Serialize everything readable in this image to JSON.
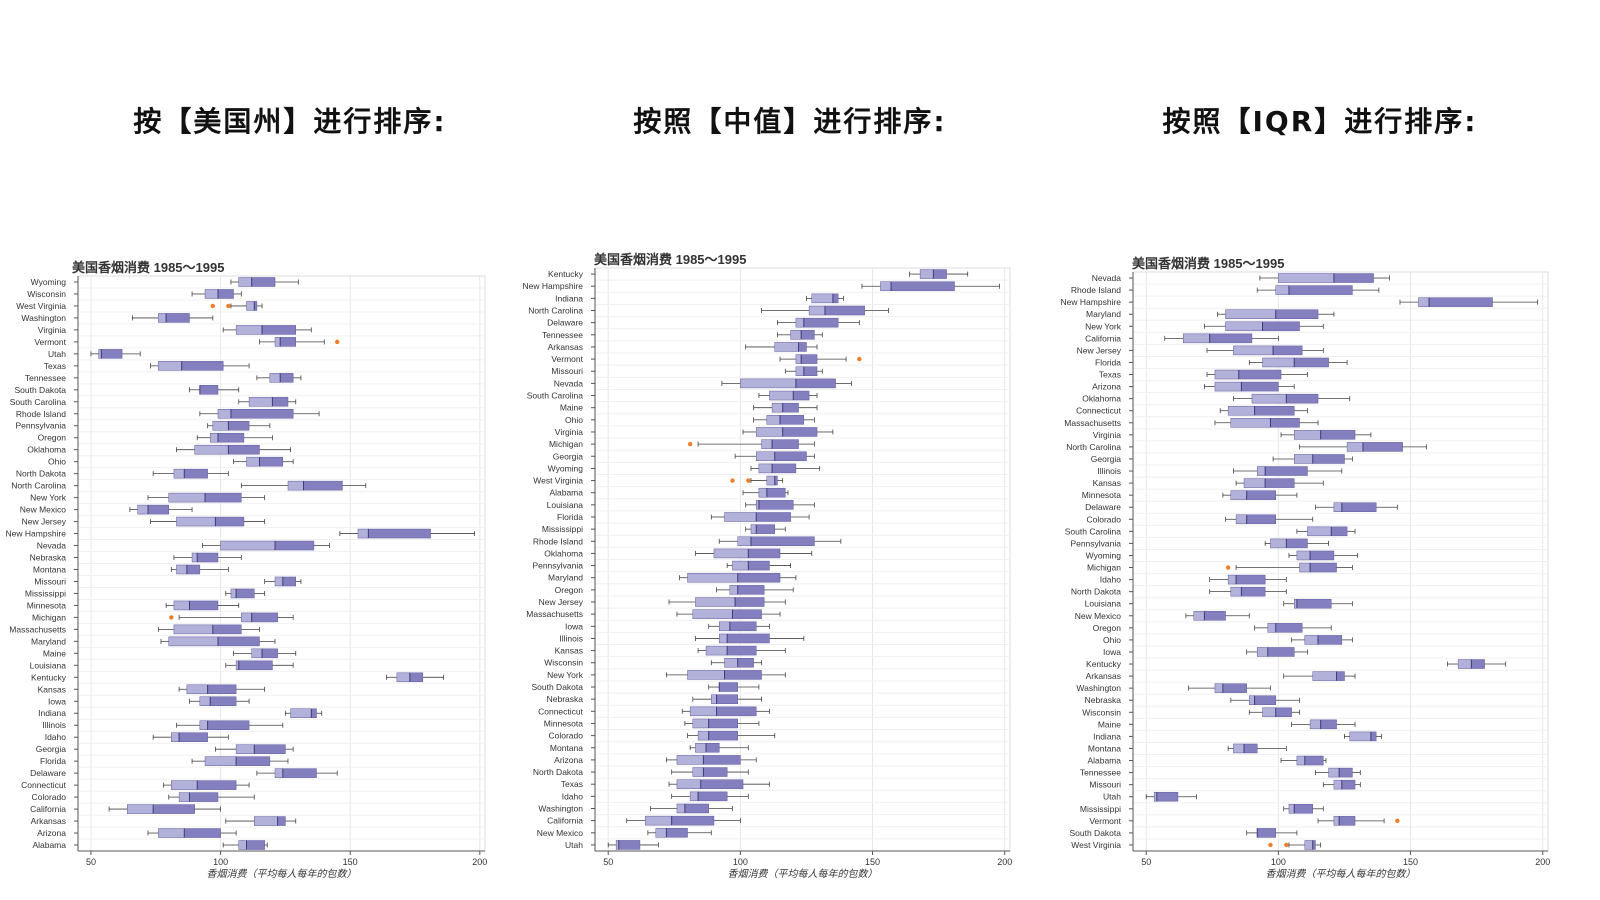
{
  "headings": [
    "按【美国州】进行排序:",
    "按照【中值】进行排序:",
    "按照【IQR】进行排序:"
  ],
  "colors": {
    "box_low": "#b2b1d9",
    "box_high": "#8480c0",
    "box_stroke": "#5c5a9c",
    "outlier": "#f07d2a",
    "grid": "#e6e6e6",
    "axis": "#555555"
  },
  "chart_data": [
    {
      "type": "box",
      "title": "美国香烟消费 1985～1995",
      "xlabel": "香烟消费（平均每人每年的包数）",
      "xlim": [
        45,
        202
      ],
      "xticks": [
        50,
        100,
        150,
        200
      ],
      "categories": [
        "Wyoming",
        "Wisconsin",
        "West Virginia",
        "Washington",
        "Virginia",
        "Vermont",
        "Utah",
        "Texas",
        "Tennessee",
        "South Dakota",
        "South Carolina",
        "Rhode Island",
        "Pennsylvania",
        "Oregon",
        "Oklahoma",
        "Ohio",
        "North Dakota",
        "North Carolina",
        "New York",
        "New Mexico",
        "New Jersey",
        "New Hampshire",
        "Nevada",
        "Nebraska",
        "Montana",
        "Missouri",
        "Mississippi",
        "Minnesota",
        "Michigan",
        "Massachusetts",
        "Maryland",
        "Maine",
        "Louisiana",
        "Kentucky",
        "Kansas",
        "Iowa",
        "Indiana",
        "Illinois",
        "Idaho",
        "Georgia",
        "Florida",
        "Delaware",
        "Connecticut",
        "Colorado",
        "California",
        "Arkansas",
        "Arizona",
        "Alabama"
      ],
      "stats": [
        [
          104,
          107,
          112,
          121,
          130
        ],
        [
          89,
          94,
          99,
          105,
          108
        ],
        [
          104,
          110,
          113,
          114,
          116
        ],
        [
          66,
          76,
          79,
          88,
          97
        ],
        [
          101,
          106,
          116,
          129,
          135
        ],
        [
          115,
          121,
          123,
          129,
          140
        ],
        [
          50,
          53,
          54,
          62,
          69
        ],
        [
          73,
          76,
          85,
          101,
          111
        ],
        [
          114,
          119,
          123,
          128,
          131
        ],
        [
          88,
          92,
          92,
          99,
          107
        ],
        [
          107,
          111,
          120,
          126,
          129
        ],
        [
          92,
          99,
          104,
          128,
          138
        ],
        [
          95,
          97,
          103,
          111,
          119
        ],
        [
          91,
          96,
          99,
          109,
          120
        ],
        [
          83,
          90,
          103,
          115,
          127
        ],
        [
          105,
          110,
          115,
          124,
          128
        ],
        [
          74,
          82,
          86,
          95,
          103
        ],
        [
          108,
          126,
          132,
          147,
          156
        ],
        [
          72,
          80,
          94,
          108,
          117
        ],
        [
          65,
          68,
          72,
          80,
          89
        ],
        [
          73,
          83,
          98,
          109,
          117
        ],
        [
          146,
          153,
          157,
          181,
          198
        ],
        [
          93,
          100,
          121,
          136,
          142
        ],
        [
          82,
          89,
          91,
          99,
          108
        ],
        [
          81,
          83,
          87,
          92,
          103
        ],
        [
          117,
          121,
          124,
          129,
          131
        ],
        [
          102,
          104,
          106,
          113,
          117
        ],
        [
          79,
          82,
          88,
          99,
          107
        ],
        [
          84,
          108,
          112,
          122,
          128
        ],
        [
          76,
          82,
          97,
          108,
          115
        ],
        [
          77,
          80,
          99,
          115,
          121
        ],
        [
          105,
          112,
          116,
          122,
          129
        ],
        [
          102,
          106,
          107,
          120,
          128
        ],
        [
          164,
          168,
          173,
          178,
          186
        ],
        [
          84,
          87,
          95,
          106,
          117
        ],
        [
          88,
          92,
          96,
          106,
          111
        ],
        [
          125,
          127,
          135,
          137,
          139
        ],
        [
          83,
          92,
          95,
          111,
          124
        ],
        [
          74,
          81,
          84,
          95,
          103
        ],
        [
          98,
          106,
          113,
          125,
          128
        ],
        [
          89,
          94,
          106,
          119,
          126
        ],
        [
          114,
          121,
          124,
          137,
          145
        ],
        [
          78,
          81,
          91,
          106,
          111
        ],
        [
          80,
          84,
          88,
          99,
          113
        ],
        [
          57,
          64,
          74,
          90,
          100
        ],
        [
          102,
          113,
          122,
          125,
          129
        ],
        [
          72,
          76,
          86,
          100,
          106
        ],
        [
          101,
          107,
          110,
          117,
          118
        ]
      ],
      "outliers": [
        [],
        [],
        [
          97,
          103
        ],
        [],
        [],
        [
          145
        ],
        [],
        [],
        [],
        [],
        [],
        [],
        [],
        [],
        [],
        [],
        [],
        [],
        [],
        [],
        [],
        [],
        [],
        [],
        [],
        [],
        [],
        [],
        [
          81
        ],
        [],
        [],
        [],
        [],
        [],
        [],
        [],
        [],
        [],
        [],
        [],
        [],
        [],
        [],
        [],
        [],
        [],
        [],
        []
      ]
    },
    {
      "type": "box",
      "title": "美国香烟消费 1985～1995",
      "xlabel": "香烟消费（平均每人每年的包数）",
      "xlim": [
        45,
        202
      ],
      "xticks": [
        50,
        100,
        150,
        200
      ],
      "categories": [
        "Kentucky",
        "New Hampshire",
        "Indiana",
        "North Carolina",
        "Delaware",
        "Tennessee",
        "Arkansas",
        "Vermont",
        "Missouri",
        "Nevada",
        "South Carolina",
        "Maine",
        "Ohio",
        "Virginia",
        "Michigan",
        "Georgia",
        "Wyoming",
        "West Virginia",
        "Alabama",
        "Louisiana",
        "Florida",
        "Mississippi",
        "Rhode Island",
        "Oklahoma",
        "Pennsylvania",
        "Maryland",
        "Oregon",
        "New Jersey",
        "Massachusetts",
        "Iowa",
        "Illinois",
        "Kansas",
        "Wisconsin",
        "New York",
        "South Dakota",
        "Nebraska",
        "Connecticut",
        "Minnesota",
        "Colorado",
        "Montana",
        "Arizona",
        "North Dakota",
        "Texas",
        "Idaho",
        "Washington",
        "California",
        "New Mexico",
        "Utah"
      ],
      "stats": [
        [
          164,
          168,
          173,
          178,
          186
        ],
        [
          146,
          153,
          157,
          181,
          198
        ],
        [
          125,
          127,
          135,
          137,
          139
        ],
        [
          108,
          126,
          132,
          147,
          156
        ],
        [
          114,
          121,
          124,
          137,
          145
        ],
        [
          114,
          119,
          123,
          128,
          131
        ],
        [
          102,
          113,
          122,
          125,
          129
        ],
        [
          115,
          121,
          123,
          129,
          140
        ],
        [
          117,
          121,
          124,
          129,
          131
        ],
        [
          93,
          100,
          121,
          136,
          142
        ],
        [
          107,
          111,
          120,
          126,
          129
        ],
        [
          105,
          112,
          116,
          122,
          129
        ],
        [
          105,
          110,
          115,
          124,
          128
        ],
        [
          101,
          106,
          116,
          129,
          135
        ],
        [
          84,
          108,
          112,
          122,
          128
        ],
        [
          98,
          106,
          113,
          125,
          128
        ],
        [
          104,
          107,
          112,
          121,
          130
        ],
        [
          104,
          110,
          113,
          114,
          116
        ],
        [
          101,
          107,
          110,
          117,
          118
        ],
        [
          102,
          106,
          107,
          120,
          128
        ],
        [
          89,
          94,
          106,
          119,
          126
        ],
        [
          102,
          104,
          106,
          113,
          117
        ],
        [
          92,
          99,
          104,
          128,
          138
        ],
        [
          83,
          90,
          103,
          115,
          127
        ],
        [
          95,
          97,
          103,
          111,
          119
        ],
        [
          77,
          80,
          99,
          115,
          121
        ],
        [
          91,
          96,
          99,
          109,
          120
        ],
        [
          73,
          83,
          98,
          109,
          117
        ],
        [
          76,
          82,
          97,
          108,
          115
        ],
        [
          88,
          92,
          96,
          106,
          111
        ],
        [
          83,
          92,
          95,
          111,
          124
        ],
        [
          84,
          87,
          95,
          106,
          117
        ],
        [
          89,
          94,
          99,
          105,
          108
        ],
        [
          72,
          80,
          94,
          108,
          117
        ],
        [
          88,
          92,
          92,
          99,
          107
        ],
        [
          82,
          89,
          91,
          99,
          108
        ],
        [
          78,
          81,
          91,
          106,
          111
        ],
        [
          79,
          82,
          88,
          99,
          107
        ],
        [
          80,
          84,
          88,
          99,
          113
        ],
        [
          81,
          83,
          87,
          92,
          103
        ],
        [
          72,
          76,
          86,
          100,
          106
        ],
        [
          74,
          82,
          86,
          95,
          103
        ],
        [
          73,
          76,
          85,
          101,
          111
        ],
        [
          74,
          81,
          84,
          95,
          103
        ],
        [
          66,
          76,
          79,
          88,
          97
        ],
        [
          57,
          64,
          74,
          90,
          100
        ],
        [
          65,
          68,
          72,
          80,
          89
        ],
        [
          50,
          53,
          54,
          62,
          69
        ]
      ],
      "outliers": [
        [],
        [],
        [],
        [],
        [],
        [],
        [],
        [
          145
        ],
        [],
        [],
        [],
        [],
        [],
        [],
        [
          81
        ],
        [],
        [],
        [
          97,
          103
        ],
        [],
        [],
        [],
        [],
        [],
        [],
        [],
        [],
        [],
        [],
        [],
        [],
        [],
        [],
        [],
        [],
        [],
        [],
        [],
        [],
        [],
        [],
        [],
        [],
        [],
        [],
        [],
        [],
        [],
        []
      ]
    },
    {
      "type": "box",
      "title": "美国香烟消费 1985～1995",
      "xlabel": "香烟消费（平均每人每年的包数）",
      "xlim": [
        45,
        202
      ],
      "xticks": [
        50,
        100,
        150,
        200
      ],
      "categories": [
        "Nevada",
        "Rhode Island",
        "New Hampshire",
        "Maryland",
        "New York",
        "California",
        "New Jersey",
        "Florida",
        "Texas",
        "Arizona",
        "Oklahoma",
        "Connecticut",
        "Massachusetts",
        "Virginia",
        "North Carolina",
        "Georgia",
        "Illinois",
        "Kansas",
        "Minnesota",
        "Delaware",
        "Colorado",
        "South Carolina",
        "Pennsylvania",
        "Wyoming",
        "Michigan",
        "Idaho",
        "North Dakota",
        "Louisiana",
        "New Mexico",
        "Oregon",
        "Ohio",
        "Iowa",
        "Kentucky",
        "Arkansas",
        "Washington",
        "Nebraska",
        "Wisconsin",
        "Maine",
        "Indiana",
        "Montana",
        "Alabama",
        "Tennessee",
        "Missouri",
        "Utah",
        "Mississippi",
        "Vermont",
        "South Dakota",
        "West Virginia"
      ],
      "stats": [
        [
          93,
          100,
          121,
          136,
          142
        ],
        [
          92,
          99,
          104,
          128,
          138
        ],
        [
          146,
          153,
          157,
          181,
          198
        ],
        [
          77,
          80,
          99,
          115,
          121
        ],
        [
          72,
          80,
          94,
          108,
          117
        ],
        [
          57,
          64,
          74,
          90,
          100
        ],
        [
          73,
          83,
          98,
          109,
          117
        ],
        [
          89,
          94,
          106,
          119,
          126
        ],
        [
          73,
          76,
          85,
          101,
          111
        ],
        [
          72,
          76,
          86,
          100,
          106
        ],
        [
          83,
          90,
          103,
          115,
          127
        ],
        [
          78,
          81,
          91,
          106,
          111
        ],
        [
          76,
          82,
          97,
          108,
          115
        ],
        [
          101,
          106,
          116,
          129,
          135
        ],
        [
          108,
          126,
          132,
          147,
          156
        ],
        [
          98,
          106,
          113,
          125,
          128
        ],
        [
          83,
          92,
          95,
          111,
          124
        ],
        [
          84,
          87,
          95,
          106,
          117
        ],
        [
          79,
          82,
          88,
          99,
          107
        ],
        [
          114,
          121,
          124,
          137,
          145
        ],
        [
          80,
          84,
          88,
          99,
          113
        ],
        [
          107,
          111,
          120,
          126,
          129
        ],
        [
          95,
          97,
          103,
          111,
          119
        ],
        [
          104,
          107,
          112,
          121,
          130
        ],
        [
          84,
          108,
          112,
          122,
          128
        ],
        [
          74,
          81,
          84,
          95,
          103
        ],
        [
          74,
          82,
          86,
          95,
          103
        ],
        [
          102,
          106,
          107,
          120,
          128
        ],
        [
          65,
          68,
          72,
          80,
          89
        ],
        [
          91,
          96,
          99,
          109,
          120
        ],
        [
          105,
          110,
          115,
          124,
          128
        ],
        [
          88,
          92,
          96,
          106,
          111
        ],
        [
          164,
          168,
          173,
          178,
          186
        ],
        [
          102,
          113,
          122,
          125,
          129
        ],
        [
          66,
          76,
          79,
          88,
          97
        ],
        [
          82,
          89,
          91,
          99,
          108
        ],
        [
          89,
          94,
          99,
          105,
          108
        ],
        [
          105,
          112,
          116,
          122,
          129
        ],
        [
          125,
          127,
          135,
          137,
          139
        ],
        [
          81,
          83,
          87,
          92,
          103
        ],
        [
          101,
          107,
          110,
          117,
          118
        ],
        [
          114,
          119,
          123,
          128,
          131
        ],
        [
          117,
          121,
          124,
          129,
          131
        ],
        [
          50,
          53,
          54,
          62,
          69
        ],
        [
          102,
          104,
          106,
          113,
          117
        ],
        [
          115,
          121,
          123,
          129,
          140
        ],
        [
          88,
          92,
          92,
          99,
          107
        ],
        [
          104,
          110,
          113,
          114,
          116
        ]
      ],
      "outliers": [
        [],
        [],
        [],
        [],
        [],
        [],
        [],
        [],
        [],
        [],
        [],
        [],
        [],
        [],
        [],
        [],
        [],
        [],
        [],
        [],
        [],
        [],
        [],
        [],
        [
          81
        ],
        [],
        [],
        [],
        [],
        [],
        [],
        [],
        [],
        [],
        [],
        [],
        [],
        [],
        [],
        [],
        [],
        [],
        [],
        [],
        [],
        [
          145
        ],
        [],
        [
          97,
          103
        ]
      ]
    }
  ]
}
